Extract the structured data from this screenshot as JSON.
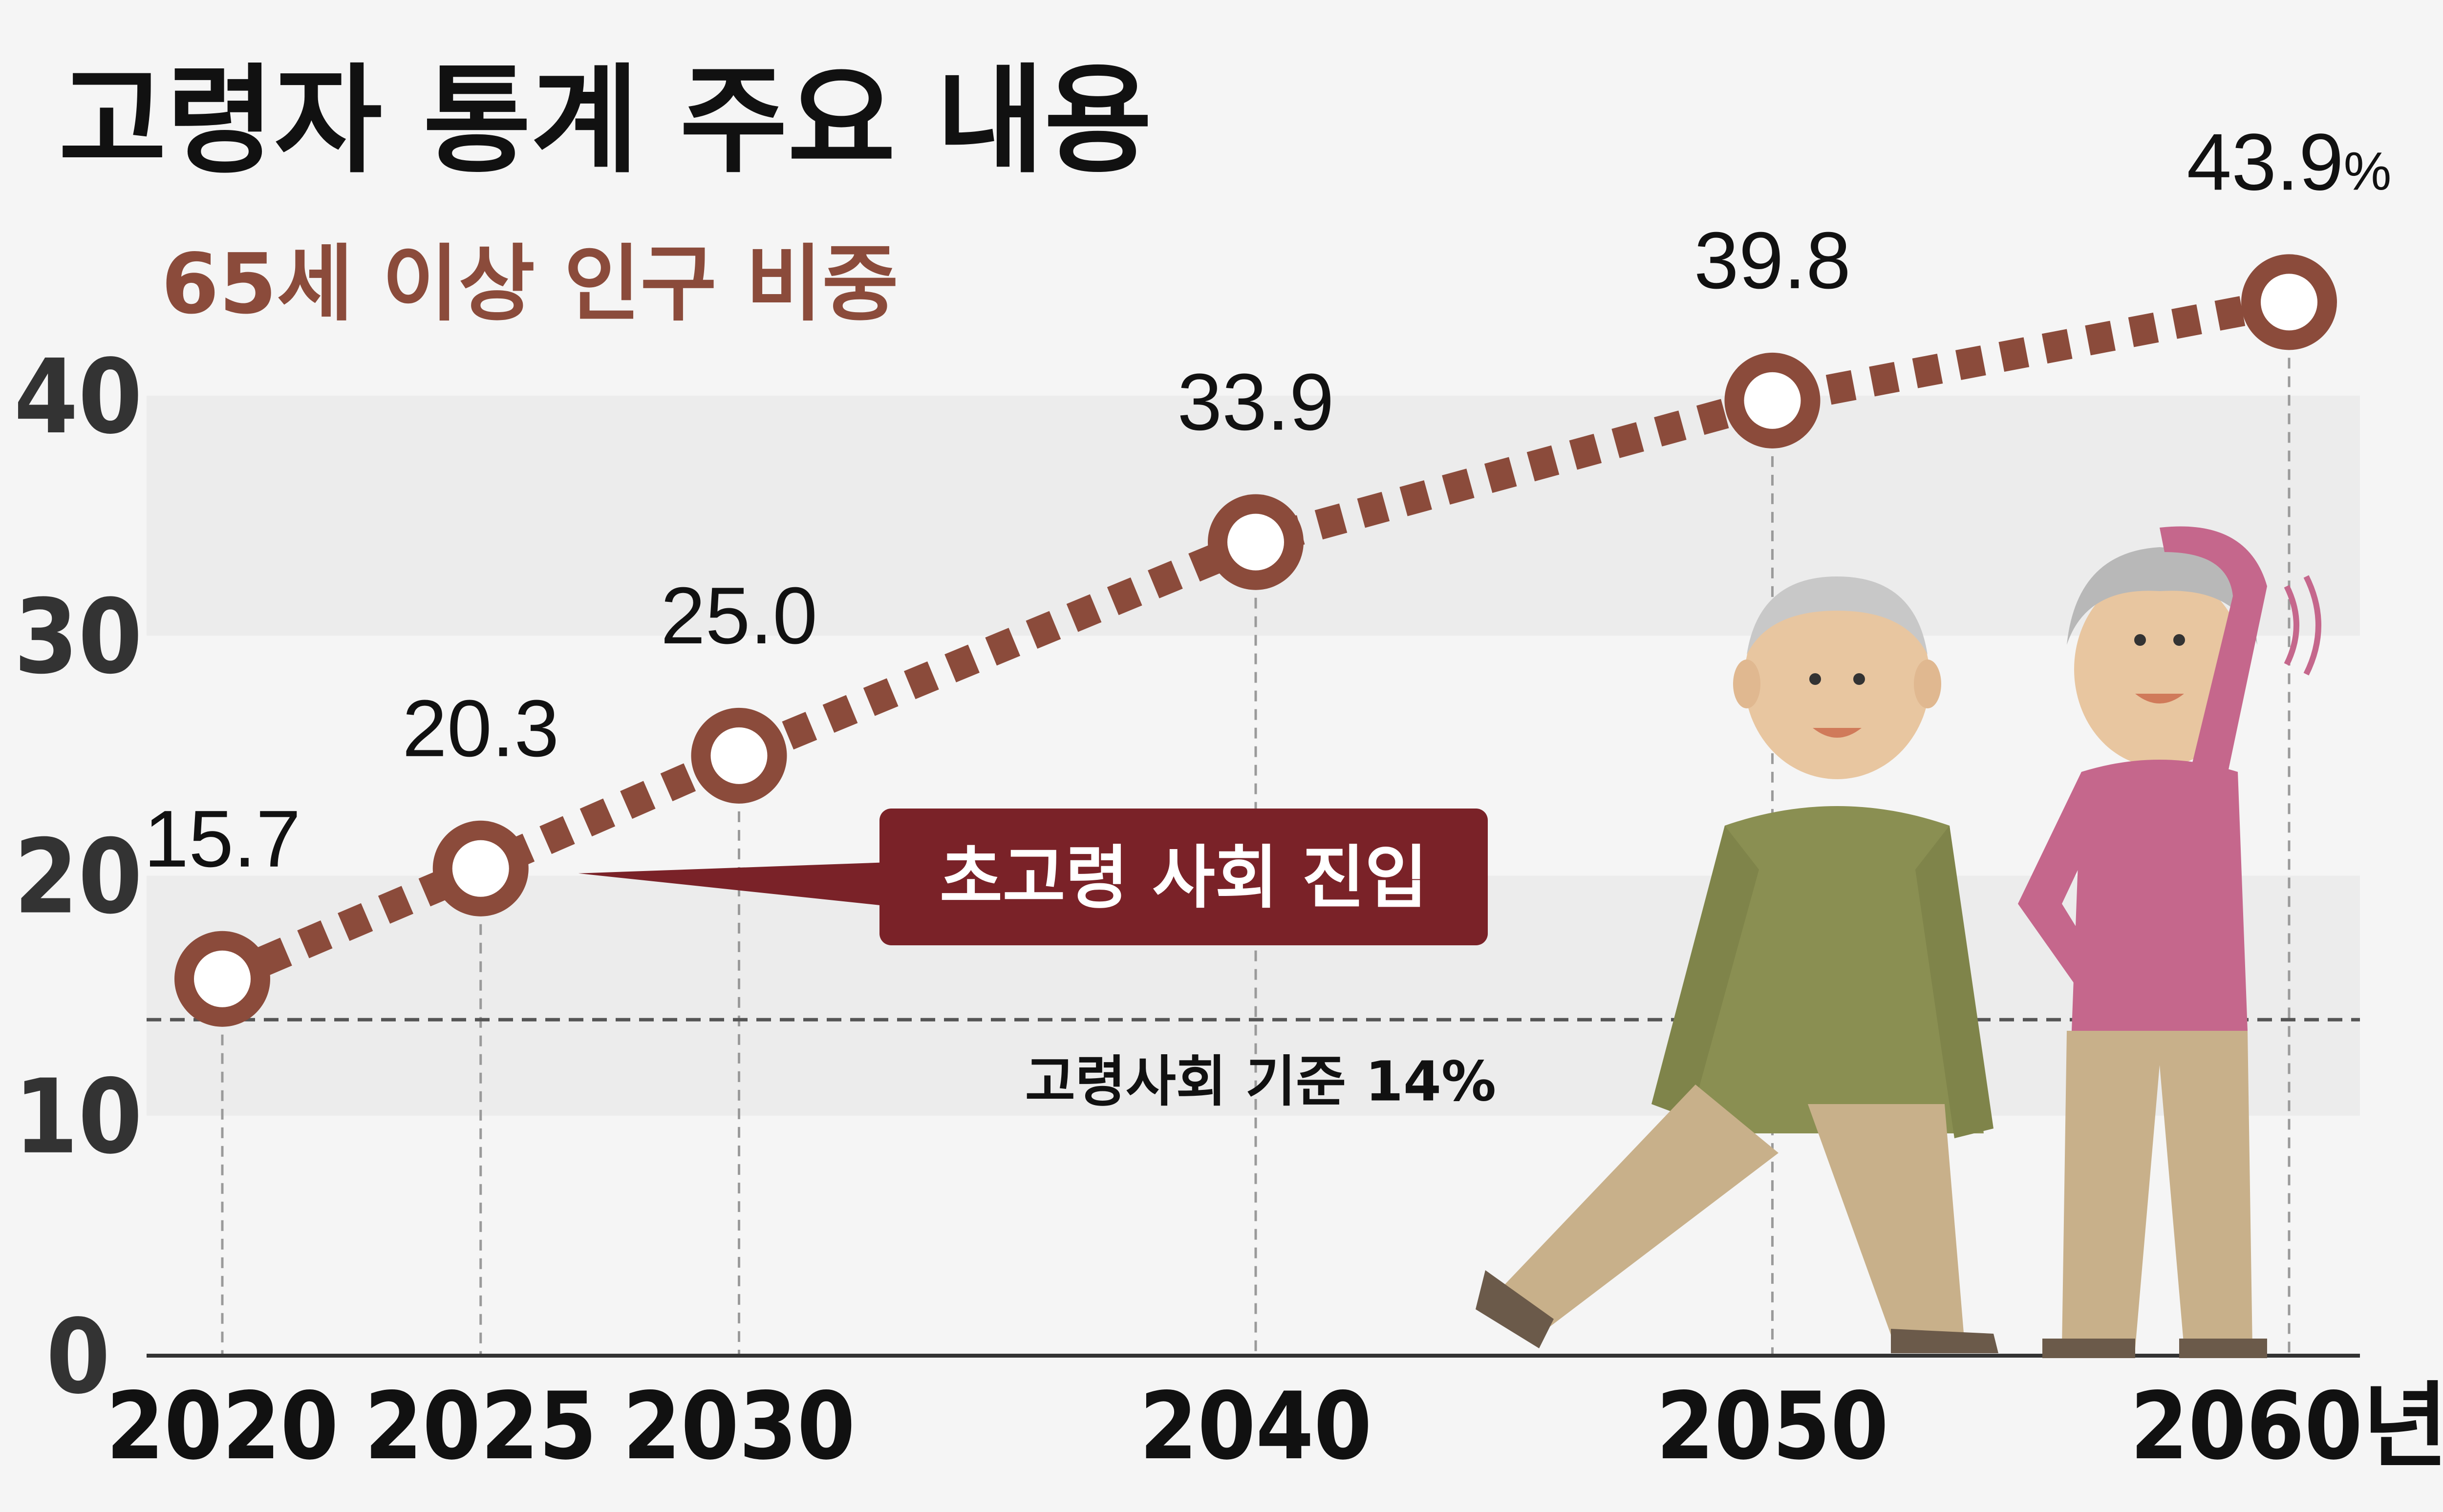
{
  "colors": {
    "background": "#f5f5f5",
    "band": "#ececec",
    "line": "#8b4b3b",
    "marker_fill": "#ffffff",
    "subtitle": "#8b4b3b",
    "callout_bg": "#7a2228",
    "gridline": "#9a9a9a",
    "reference_line": "#555555"
  },
  "chart_data": {
    "type": "line",
    "title": "고령자 통계 주요 내용",
    "subtitle": "65세 이상 인구 비중",
    "x": [
      2020,
      2025,
      2030,
      2040,
      2050,
      2060
    ],
    "x_tick_labels": [
      "2020",
      "2025",
      "2030",
      "2040",
      "2050",
      "2060년"
    ],
    "ylim": [
      0,
      40
    ],
    "y_ticks": [
      "0",
      "10",
      "20",
      "30",
      "40"
    ],
    "series": [
      {
        "values": [
          15.7,
          20.3,
          25.0,
          33.9,
          39.8,
          43.9
        ],
        "data_labels": [
          "15.7",
          "20.3",
          "25.0",
          "33.9",
          "39.8",
          "43.9"
        ],
        "last_label_suffix": "%",
        "line_style": "dashed",
        "marker": "ring"
      }
    ],
    "annotations": [
      {
        "text": "초고령 사회 진입",
        "points_to_x": 2025,
        "style": "callout"
      }
    ],
    "reference_line": {
      "y": 14,
      "label": "고령사회 기준 14%",
      "style": "dashed"
    },
    "grid": "alternating horizontal bands with vertical dashed gridlines at each x value",
    "legend": "none",
    "illustration": "elderly-couple-exercising"
  }
}
